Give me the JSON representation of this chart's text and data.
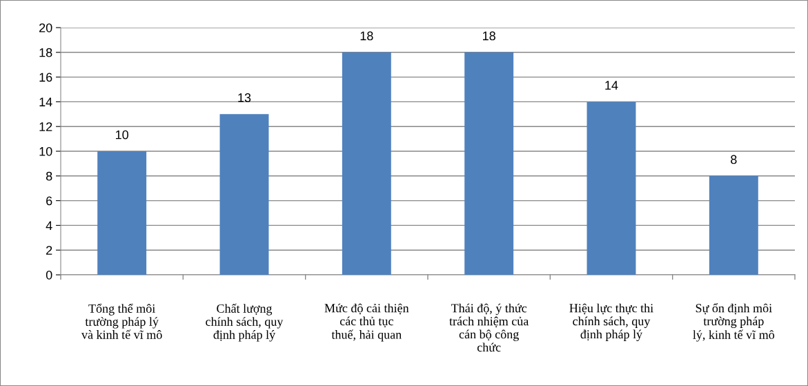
{
  "chart_data": {
    "type": "bar",
    "categories": [
      "Tổng thể môi\ntrường pháp lý\nvà kinh tế vĩ mô",
      "Chất lượng\nchính sách, quy\nđịnh pháp lý",
      "Mức độ cải thiện\ncác thủ tục\nthuế, hải quan",
      "Thái độ, ý thức\ntrách nhiệm của\ncán bộ công\nchức",
      "Hiệu lực thực thi\nchính sách, quy\nđịnh pháp lý",
      "Sự ổn định môi\ntrường pháp\nlý, kinh tế vĩ mô"
    ],
    "values": [
      10,
      13,
      18,
      18,
      14,
      8
    ],
    "color": "#4f81bd",
    "ylim": [
      0,
      20
    ],
    "yticks": [
      0,
      2,
      4,
      6,
      8,
      10,
      12,
      14,
      16,
      18,
      20
    ],
    "grid": "y",
    "data_labels": true,
    "legend": false
  }
}
